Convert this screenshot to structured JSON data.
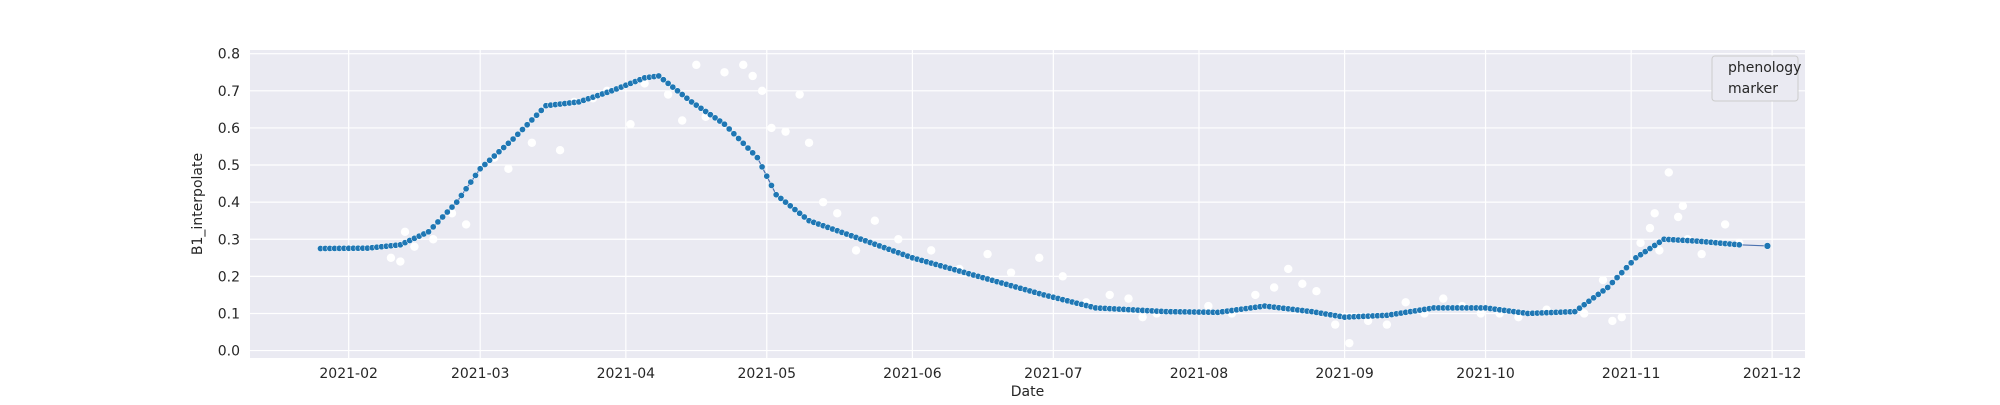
{
  "colors": {
    "background": "#ffffff",
    "plot_background": "#eaeaf2",
    "grid": "#ffffff",
    "series_marker": "#1f77b4",
    "series_line": "#4c72b0",
    "raw_points": "#ffffff",
    "legend_bg": "#eaeaf2",
    "legend_border": "#cccccc"
  },
  "chart_data": {
    "type": "scatter",
    "title": "",
    "xlabel": "Date",
    "ylabel": "B1_interpolate",
    "x_axis_type": "date",
    "xlim": [
      "2021-01-11",
      "2021-12-08"
    ],
    "ylim": [
      -0.02,
      0.81
    ],
    "x_ticks": [
      "2021-02-01",
      "2021-03-01",
      "2021-04-01",
      "2021-05-01",
      "2021-06-01",
      "2021-07-01",
      "2021-08-01",
      "2021-09-01",
      "2021-10-01",
      "2021-11-01",
      "2021-12-01"
    ],
    "x_tick_labels": [
      "2021-02",
      "2021-03",
      "2021-04",
      "2021-05",
      "2021-06",
      "2021-07",
      "2021-08",
      "2021-09",
      "2021-10",
      "2021-11",
      "2021-12"
    ],
    "y_ticks": [
      0.0,
      0.1,
      0.2,
      0.3,
      0.4,
      0.5,
      0.6,
      0.7,
      0.8
    ],
    "y_tick_labels": [
      "0.0",
      "0.1",
      "0.2",
      "0.3",
      "0.4",
      "0.5",
      "0.6",
      "0.7",
      "0.8"
    ],
    "grid": true,
    "legend": {
      "placement": "top-right",
      "entries": [
        "phenology",
        "marker"
      ]
    },
    "series": [
      {
        "name": "phenology",
        "marker": "filled-circle",
        "points": [
          [
            "2021-01-26",
            0.275
          ],
          [
            "2021-02-05",
            0.276
          ],
          [
            "2021-02-12",
            0.285
          ],
          [
            "2021-02-18",
            0.32
          ],
          [
            "2021-02-24",
            0.4
          ],
          [
            "2021-03-01",
            0.49
          ],
          [
            "2021-03-08",
            0.57
          ],
          [
            "2021-03-15",
            0.66
          ],
          [
            "2021-03-22",
            0.67
          ],
          [
            "2021-03-29",
            0.7
          ],
          [
            "2021-04-05",
            0.735
          ],
          [
            "2021-04-08",
            0.74
          ],
          [
            "2021-04-15",
            0.67
          ],
          [
            "2021-04-22",
            0.61
          ],
          [
            "2021-04-29",
            0.52
          ],
          [
            "2021-05-03",
            0.42
          ],
          [
            "2021-05-10",
            0.35
          ],
          [
            "2021-05-20",
            0.305
          ],
          [
            "2021-06-01",
            0.25
          ],
          [
            "2021-06-15",
            0.2
          ],
          [
            "2021-06-29",
            0.15
          ],
          [
            "2021-07-10",
            0.115
          ],
          [
            "2021-07-25",
            0.105
          ],
          [
            "2021-08-05",
            0.103
          ],
          [
            "2021-08-15",
            0.12
          ],
          [
            "2021-08-25",
            0.105
          ],
          [
            "2021-09-01",
            0.09
          ],
          [
            "2021-09-10",
            0.095
          ],
          [
            "2021-09-20",
            0.115
          ],
          [
            "2021-10-01",
            0.115
          ],
          [
            "2021-10-10",
            0.1
          ],
          [
            "2021-10-20",
            0.105
          ],
          [
            "2021-10-27",
            0.17
          ],
          [
            "2021-11-02",
            0.25
          ],
          [
            "2021-11-08",
            0.3
          ],
          [
            "2021-11-15",
            0.295
          ],
          [
            "2021-11-24",
            0.285
          ]
        ],
        "line_points": [
          [
            "2021-11-24",
            0.285
          ],
          [
            "2021-11-30",
            0.282
          ]
        ],
        "end_marker": [
          "2021-11-30",
          0.282
        ]
      },
      {
        "name": "marker",
        "marker": "white-circle",
        "points": [
          [
            "2021-02-10",
            0.25
          ],
          [
            "2021-02-12",
            0.24
          ],
          [
            "2021-02-13",
            0.32
          ],
          [
            "2021-02-15",
            0.28
          ],
          [
            "2021-02-19",
            0.3
          ],
          [
            "2021-02-23",
            0.37
          ],
          [
            "2021-02-26",
            0.34
          ],
          [
            "2021-03-04",
            0.52
          ],
          [
            "2021-03-07",
            0.49
          ],
          [
            "2021-03-12",
            0.56
          ],
          [
            "2021-03-18",
            0.54
          ],
          [
            "2021-03-21",
            0.67
          ],
          [
            "2021-03-25",
            0.68
          ],
          [
            "2021-03-28",
            0.7
          ],
          [
            "2021-04-02",
            0.61
          ],
          [
            "2021-04-05",
            0.72
          ],
          [
            "2021-04-10",
            0.69
          ],
          [
            "2021-04-13",
            0.62
          ],
          [
            "2021-04-16",
            0.77
          ],
          [
            "2021-04-18",
            0.63
          ],
          [
            "2021-04-22",
            0.75
          ],
          [
            "2021-04-26",
            0.77
          ],
          [
            "2021-04-28",
            0.74
          ],
          [
            "2021-04-30",
            0.7
          ],
          [
            "2021-05-02",
            0.6
          ],
          [
            "2021-05-05",
            0.59
          ],
          [
            "2021-05-08",
            0.69
          ],
          [
            "2021-05-10",
            0.56
          ],
          [
            "2021-05-13",
            0.4
          ],
          [
            "2021-05-16",
            0.37
          ],
          [
            "2021-05-20",
            0.27
          ],
          [
            "2021-05-24",
            0.35
          ],
          [
            "2021-05-29",
            0.3
          ],
          [
            "2021-06-05",
            0.27
          ],
          [
            "2021-06-11",
            0.22
          ],
          [
            "2021-06-17",
            0.26
          ],
          [
            "2021-06-22",
            0.21
          ],
          [
            "2021-06-28",
            0.25
          ],
          [
            "2021-07-03",
            0.2
          ],
          [
            "2021-07-08",
            0.13
          ],
          [
            "2021-07-13",
            0.15
          ],
          [
            "2021-07-17",
            0.14
          ],
          [
            "2021-07-20",
            0.09
          ],
          [
            "2021-07-23",
            0.1
          ],
          [
            "2021-08-03",
            0.12
          ],
          [
            "2021-08-08",
            0.1
          ],
          [
            "2021-08-13",
            0.15
          ],
          [
            "2021-08-17",
            0.17
          ],
          [
            "2021-08-20",
            0.22
          ],
          [
            "2021-08-23",
            0.18
          ],
          [
            "2021-08-26",
            0.16
          ],
          [
            "2021-08-30",
            0.07
          ],
          [
            "2021-09-02",
            0.02
          ],
          [
            "2021-09-06",
            0.08
          ],
          [
            "2021-09-10",
            0.07
          ],
          [
            "2021-09-14",
            0.13
          ],
          [
            "2021-09-18",
            0.1
          ],
          [
            "2021-09-22",
            0.14
          ],
          [
            "2021-09-26",
            0.12
          ],
          [
            "2021-09-30",
            0.1
          ],
          [
            "2021-10-04",
            0.1
          ],
          [
            "2021-10-08",
            0.09
          ],
          [
            "2021-10-14",
            0.11
          ],
          [
            "2021-10-22",
            0.1
          ],
          [
            "2021-10-26",
            0.19
          ],
          [
            "2021-10-28",
            0.08
          ],
          [
            "2021-10-30",
            0.09
          ],
          [
            "2021-11-03",
            0.29
          ],
          [
            "2021-11-05",
            0.33
          ],
          [
            "2021-11-06",
            0.37
          ],
          [
            "2021-11-07",
            0.27
          ],
          [
            "2021-11-09",
            0.48
          ],
          [
            "2021-11-11",
            0.36
          ],
          [
            "2021-11-12",
            0.39
          ],
          [
            "2021-11-13",
            0.3
          ],
          [
            "2021-11-16",
            0.26
          ],
          [
            "2021-11-21",
            0.34
          ],
          [
            "2021-11-24",
            0.29
          ]
        ]
      }
    ]
  }
}
